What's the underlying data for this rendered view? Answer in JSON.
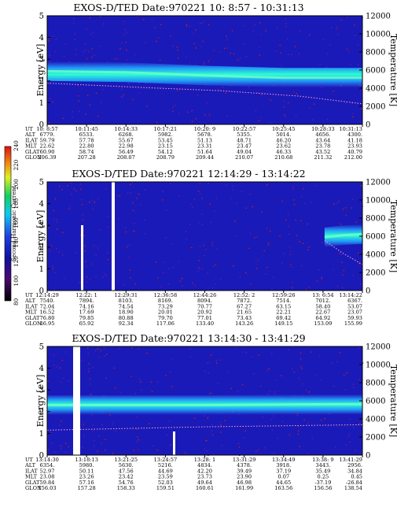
{
  "chart_data": [
    {
      "type": "heatmap",
      "title": "EXOS-D/TED   Date:970221  10: 8:57 - 10:31:13",
      "ylabel": "Energy [eV]",
      "ylabel_right": "Temperature [K]",
      "ylim": [
        0,
        5
      ],
      "ylim_right": [
        0,
        12000
      ],
      "yticks": [
        "0",
        "1",
        "2",
        "3",
        "4",
        "5"
      ],
      "yticks_right": [
        "0",
        "2000",
        "4000",
        "6000",
        "8000",
        "10000",
        "12000"
      ],
      "band": [
        {
          "t": 0.0,
          "e": 2.45
        },
        {
          "t": 0.25,
          "e": 2.4
        },
        {
          "t": 0.5,
          "e": 2.25
        },
        {
          "t": 0.75,
          "e": 2.15
        },
        {
          "t": 1.0,
          "e": 2.15
        }
      ],
      "temperature_trace": [
        {
          "t": 0.0,
          "e": 1.9
        },
        {
          "t": 0.3,
          "e": 1.7
        },
        {
          "t": 0.55,
          "e": 1.55
        },
        {
          "t": 0.8,
          "e": 1.3
        },
        {
          "t": 1.0,
          "e": 0.95
        }
      ],
      "table": {
        "row_labels": [
          "UT",
          "ALT",
          "ILAT",
          "MLT",
          "GLAT",
          "GLON"
        ],
        "columns": [
          [
            "10: 8:57",
            "6779.",
            "59.79",
            "22.62",
            "60.90",
            "206.39"
          ],
          [
            "10:11:45",
            "6533.",
            "57.78",
            "22.80",
            "58.74",
            "207.28"
          ],
          [
            "10:14:33",
            "6268.",
            "55.67",
            "22.98",
            "56.49",
            "208.07"
          ],
          [
            "10:17:21",
            "5982.",
            "53.45",
            "23.15",
            "54.12",
            "208.79"
          ],
          [
            "10:20: 9",
            "5678.",
            "51.13",
            "23.31",
            "51.64",
            "209.44"
          ],
          [
            "10:22:57",
            "5355.",
            "48.71",
            "23.47",
            "49.04",
            "210.07"
          ],
          [
            "10:25:45",
            "5014.",
            "46.20",
            "23.62",
            "46.33",
            "210.68"
          ],
          [
            "10:28:33",
            "4656.",
            "43.64",
            "23.78",
            "43.52",
            "211.32"
          ],
          [
            "10:31:13",
            "4300.",
            "41.18",
            "23.93",
            "40.79",
            "212.00"
          ]
        ]
      }
    },
    {
      "type": "heatmap",
      "title": "EXOS-D/TED   Date:970221  12:14:29 - 13:14:22",
      "ylabel": "Energy [eV]",
      "ylabel_right": "Temperature [K]",
      "ylim": [
        0,
        5
      ],
      "ylim_right": [
        0,
        12000
      ],
      "yticks": [
        "0",
        "1",
        "2",
        "3",
        "4",
        "5"
      ],
      "yticks_right": [
        "0",
        "2000",
        "4000",
        "6000",
        "8000",
        "10000",
        "12000"
      ],
      "band": [
        {
          "t": 0.88,
          "e": 2.45
        },
        {
          "t": 0.94,
          "e": 2.55
        },
        {
          "t": 1.0,
          "e": 2.6
        }
      ],
      "temperature_trace": [
        {
          "t": 0.88,
          "e": 2.3
        },
        {
          "t": 0.94,
          "e": 1.7
        },
        {
          "t": 1.0,
          "e": 1.2
        }
      ],
      "table": {
        "row_labels": [
          "UT",
          "ALT",
          "ILAT",
          "MLT",
          "GLAT",
          "GLON"
        ],
        "columns": [
          [
            "12:14:29",
            "7540.",
            "72.04",
            "16.52",
            "76.80",
            "46.95"
          ],
          [
            "12:22: 1",
            "7894.",
            "74.16",
            "17.69",
            "79.85",
            "65.92"
          ],
          [
            "12:29:31",
            "8103.",
            "74.54",
            "18.90",
            "80.88",
            "92.34"
          ],
          [
            "12:36:58",
            "8169.",
            "73.29",
            "20.01",
            "79.70",
            "117.06"
          ],
          [
            "12:44:26",
            "8094.",
            "70.77",
            "20.92",
            "77.01",
            "133.40"
          ],
          [
            "12:52: 2",
            "7872.",
            "67.27",
            "21.65",
            "73.43",
            "143.26"
          ],
          [
            "12:59:26",
            "7514.",
            "63.15",
            "22.21",
            "69.42",
            "149.15"
          ],
          [
            "13: 6:54",
            "7012.",
            "58.40",
            "22.67",
            "64.92",
            "153.09"
          ],
          [
            "13:14:22",
            "6367.",
            "53.07",
            "23.07",
            "59.93",
            "155.99"
          ]
        ]
      }
    },
    {
      "type": "heatmap",
      "title": "EXOS-D/TED   Date:970221  13:14:30 - 13:41:29",
      "ylabel": "Energy [eV]",
      "ylabel_right": "Temperature [K]",
      "ylim": [
        0,
        5
      ],
      "ylim_right": [
        0,
        12000
      ],
      "yticks": [
        "0",
        "1",
        "2",
        "3",
        "4",
        "5"
      ],
      "yticks_right": [
        "0",
        "2000",
        "4000",
        "6000",
        "8000",
        "10000",
        "12000"
      ],
      "band": [
        {
          "t": 0.0,
          "e": 2.3
        },
        {
          "t": 0.5,
          "e": 2.3
        },
        {
          "t": 1.0,
          "e": 2.35
        }
      ],
      "temperature_trace": [
        {
          "t": 0.0,
          "e": 1.15
        },
        {
          "t": 0.5,
          "e": 1.3
        },
        {
          "t": 1.0,
          "e": 1.4
        }
      ],
      "table": {
        "row_labels": [
          "UT",
          "ALT",
          "ILAT",
          "MLT",
          "GLAT",
          "GLON"
        ],
        "columns": [
          [
            "13:14:30",
            "6354.",
            "52.97",
            "23.08",
            "59.84",
            "156.03"
          ],
          [
            "13:18:13",
            "5980.",
            "50.11",
            "23.26",
            "57.16",
            "157.28"
          ],
          [
            "13:21:25",
            "5630.",
            "47.56",
            "23.42",
            "54.76",
            "158.33"
          ],
          [
            "13:24:57",
            "5216.",
            "44.69",
            "23.59",
            "52.03",
            "159.51"
          ],
          [
            "13:28: 1",
            "4834.",
            "42.20",
            "23.73",
            "49.64",
            "160.61"
          ],
          [
            "13:31:29",
            "4378.",
            "39.49",
            "23.90",
            "46.98",
            "161.99"
          ],
          [
            "13:34:49",
            "3918.",
            "37.19",
            "0.07",
            "44.65",
            "163.56"
          ],
          [
            "13:38: 9",
            "3443.",
            "35.49",
            "0.25",
            "-37.19",
            "156.56"
          ],
          [
            "13:41:29",
            "2956.",
            "34.84",
            "0.45",
            "-26.84",
            "138.54"
          ]
        ]
      }
    }
  ],
  "colorbar": {
    "label": "Second Harmonic Current",
    "ticks": [
      "80",
      "100",
      "120",
      "140",
      "160",
      "180",
      "200",
      "220",
      "240"
    ],
    "colors": [
      "#000000",
      "#4a0a6e",
      "#1010a0",
      "#2040e0",
      "#10c8f0",
      "#10d060",
      "#e0f020",
      "#f08010",
      "#e01010"
    ]
  }
}
